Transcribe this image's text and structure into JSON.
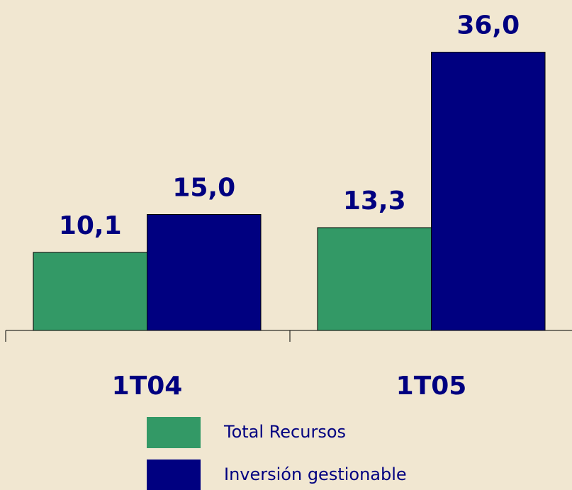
{
  "chart_data": {
    "type": "bar",
    "categories": [
      "1T04",
      "1T05"
    ],
    "series": [
      {
        "name": "Total Recursos",
        "color": "#339966",
        "values": [
          10.1,
          13.3
        ],
        "value_labels": [
          "10,1",
          "13,3"
        ]
      },
      {
        "name": "Inversión gestionable",
        "color": "#000080",
        "values": [
          15.0,
          36.0
        ],
        "value_labels": [
          "15,0",
          "36,0"
        ]
      }
    ],
    "legend": "bottom"
  }
}
